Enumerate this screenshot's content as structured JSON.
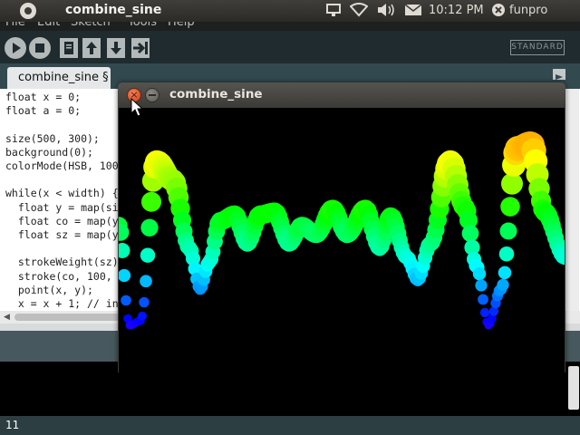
{
  "panel": {
    "app_title": "combine_sine",
    "clock": "10:12 PM",
    "user": "funpro",
    "icons": [
      "ubuntu-logo-icon",
      "display-icon",
      "wifi-icon",
      "volume-icon",
      "mail-icon",
      "power-icon"
    ]
  },
  "ide": {
    "menu": [
      "File",
      "Edit",
      "Sketch",
      "Tools",
      "Help"
    ],
    "toolbar": [
      "run-icon",
      "stop-icon",
      "new-icon",
      "open-icon",
      "save-icon",
      "export-icon"
    ],
    "mode": "STANDARD",
    "tab_label": "combine_sine §",
    "code": [
      "float x = 0;",
      "float a = 0;",
      "",
      "size(500, 300);",
      "background(0);",
      "colorMode(HSB, 100",
      "",
      "while(x < width) {",
      "  float y = map(si",
      "  float co = map(y",
      "  float sz = map(y",
      "",
      "  strokeWeight(sz)",
      "  stroke(co, 100,",
      "  point(x, y);",
      "  x = x + 1; // in"
    ],
    "line_number": "11"
  },
  "sketch_window": {
    "title": "combine_sine",
    "close_glyph": "×"
  }
}
